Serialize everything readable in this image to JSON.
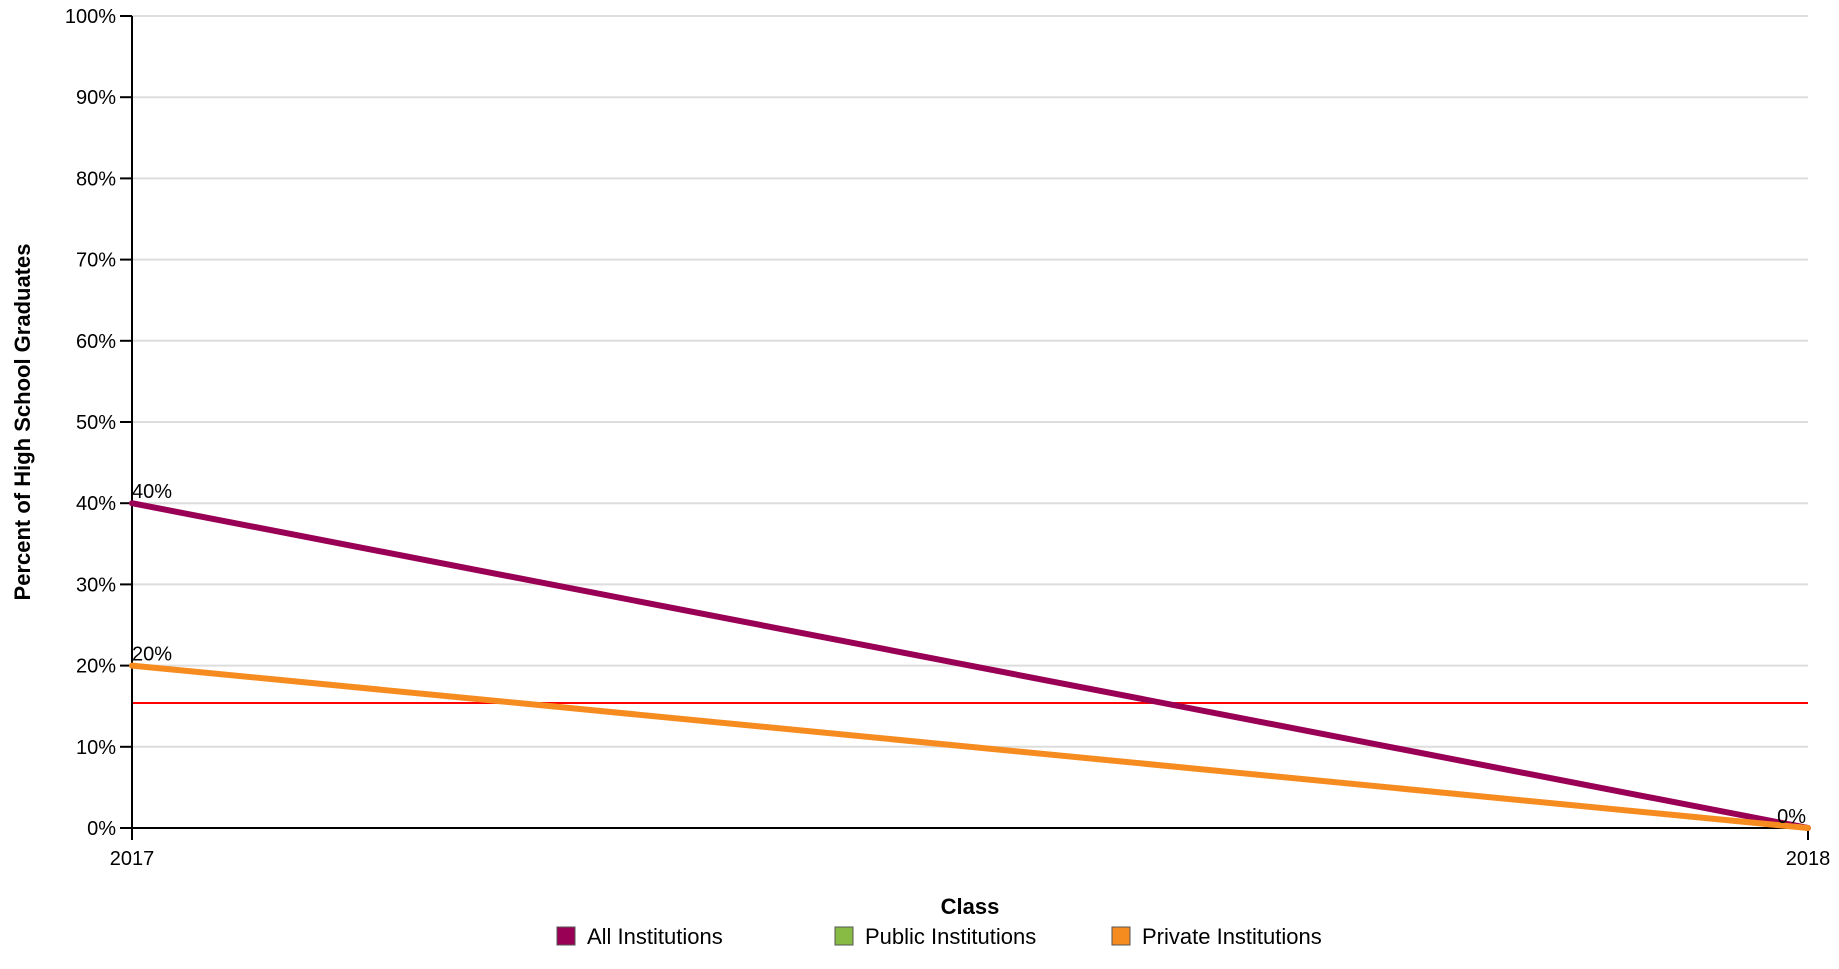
{
  "chart_data": {
    "type": "line",
    "x": [
      "2017",
      "2018"
    ],
    "xlabel": "Class",
    "ylabel": "Percent of High School Graduates",
    "ylim": [
      0,
      100
    ],
    "y_ticks": [
      "0%",
      "10%",
      "20%",
      "30%",
      "40%",
      "50%",
      "60%",
      "70%",
      "80%",
      "90%",
      "100%"
    ],
    "grid": true,
    "legend_position": "bottom",
    "series": [
      {
        "name": "All Institutions",
        "color": "#990055",
        "values": [
          40,
          0
        ],
        "data_labels": [
          "40%",
          "0%"
        ]
      },
      {
        "name": "Public Institutions",
        "color": "#88BB44",
        "values": [
          null,
          null
        ],
        "data_labels": []
      },
      {
        "name": "Private Institutions",
        "color": "#F68B1F",
        "values": [
          20,
          0
        ],
        "data_labels": [
          "20%",
          ""
        ]
      }
    ],
    "reference_line": {
      "value": 15.4,
      "color": "#FF0000"
    }
  }
}
